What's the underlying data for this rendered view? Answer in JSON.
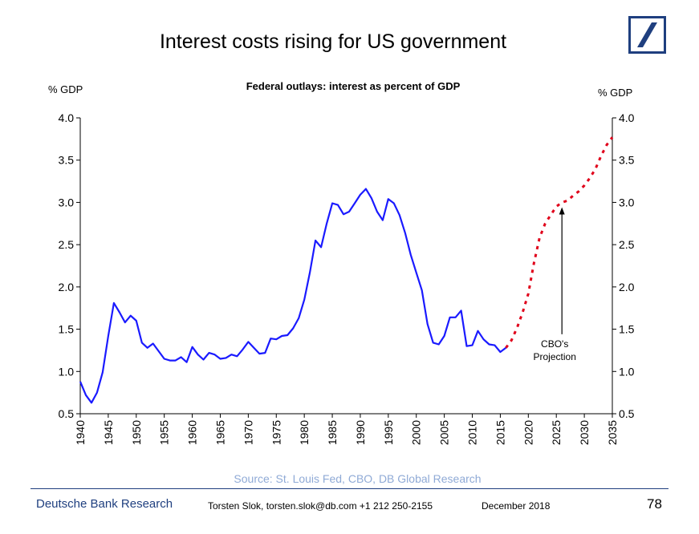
{
  "slide": {
    "title": "Interest costs rising for US government",
    "source": "Source: St. Louis Fed, CBO, DB Global Research",
    "footer_brand": "Deutsche Bank Research",
    "footer_author": "Torsten Slok, torsten.slok@db.com  +1 212 250-2155",
    "footer_date": "December 2018",
    "page_number": "78",
    "brand_color": "#1f3f7f"
  },
  "chart_data": {
    "type": "line",
    "title": "Federal outlays: interest as percent of GDP",
    "ylabel_left": "% GDP",
    "ylabel_right": "% GDP",
    "xlim": [
      1940,
      2035
    ],
    "ylim": [
      0.5,
      4.0
    ],
    "x_ticks": [
      "1940",
      "1945",
      "1950",
      "1955",
      "1960",
      "1965",
      "1970",
      "1975",
      "1980",
      "1985",
      "1990",
      "1995",
      "2000",
      "2005",
      "2010",
      "2015",
      "2020",
      "2025",
      "2030",
      "2035"
    ],
    "y_ticks": [
      "0.5",
      "1.0",
      "1.5",
      "2.0",
      "2.5",
      "3.0",
      "3.5",
      "4.0"
    ],
    "grid": false,
    "annotation": {
      "text_line1": "CBO's",
      "text_line2": "Projection",
      "arrow_x": 2026,
      "arrow_y": 2.98
    },
    "series": [
      {
        "style": "solid",
        "color": "#1a1aff",
        "x": [
          1940,
          1941,
          1942,
          1943,
          1944,
          1945,
          1946,
          1947,
          1948,
          1949,
          1950,
          1951,
          1952,
          1953,
          1954,
          1955,
          1956,
          1957,
          1958,
          1959,
          1960,
          1961,
          1962,
          1963,
          1964,
          1965,
          1966,
          1967,
          1968,
          1969,
          1970,
          1971,
          1972,
          1973,
          1974,
          1975,
          1976,
          1977,
          1978,
          1979,
          1980,
          1981,
          1982,
          1983,
          1984,
          1985,
          1986,
          1987,
          1988,
          1989,
          1990,
          1991,
          1992,
          1993,
          1994,
          1995,
          1996,
          1997,
          1998,
          1999,
          2000,
          2001,
          2002,
          2003,
          2004,
          2005,
          2006,
          2007,
          2008,
          2009,
          2010,
          2011,
          2012,
          2013,
          2014,
          2015,
          2016
        ],
        "y": [
          0.88,
          0.72,
          0.63,
          0.75,
          0.99,
          1.42,
          1.81,
          1.7,
          1.58,
          1.66,
          1.6,
          1.34,
          1.28,
          1.33,
          1.24,
          1.15,
          1.13,
          1.13,
          1.17,
          1.11,
          1.29,
          1.2,
          1.14,
          1.22,
          1.2,
          1.15,
          1.16,
          1.2,
          1.18,
          1.26,
          1.35,
          1.28,
          1.21,
          1.22,
          1.39,
          1.38,
          1.42,
          1.43,
          1.51,
          1.63,
          1.85,
          2.17,
          2.55,
          2.47,
          2.75,
          2.99,
          2.97,
          2.86,
          2.89,
          2.99,
          3.09,
          3.16,
          3.05,
          2.89,
          2.79,
          3.04,
          2.99,
          2.85,
          2.64,
          2.38,
          2.17,
          1.96,
          1.56,
          1.34,
          1.32,
          1.42,
          1.64,
          1.64,
          1.72,
          1.3,
          1.31,
          1.48,
          1.38,
          1.32,
          1.31,
          1.23,
          1.28
        ]
      },
      {
        "style": "dotted",
        "color": "#e0001a",
        "x": [
          2016,
          2017,
          2018,
          2019,
          2020,
          2021,
          2022,
          2023,
          2024,
          2025,
          2026,
          2027,
          2028,
          2029,
          2030,
          2031,
          2032,
          2033,
          2034,
          2035
        ],
        "y": [
          1.28,
          1.37,
          1.52,
          1.7,
          1.92,
          2.28,
          2.58,
          2.75,
          2.85,
          2.95,
          3.0,
          3.02,
          3.08,
          3.13,
          3.2,
          3.29,
          3.4,
          3.55,
          3.68,
          3.77
        ]
      }
    ]
  }
}
